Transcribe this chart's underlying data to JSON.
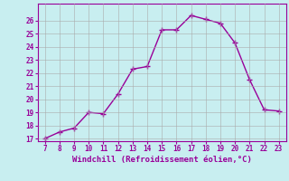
{
  "x": [
    7,
    8,
    9,
    10,
    11,
    12,
    13,
    14,
    15,
    16,
    17,
    18,
    19,
    20,
    21,
    22,
    23
  ],
  "y": [
    17.0,
    17.5,
    17.8,
    19.0,
    18.9,
    20.4,
    22.3,
    22.5,
    25.3,
    25.3,
    26.4,
    26.1,
    25.8,
    24.3,
    21.5,
    19.2,
    19.1
  ],
  "line_color": "#990099",
  "marker": "+",
  "background_color": "#c8eef0",
  "grid_color": "#aaaaaa",
  "xlabel": "Windchill (Refroidissement éolien,°C)",
  "xlabel_color": "#990099",
  "tick_color": "#990099",
  "ylim": [
    17,
    27
  ],
  "xlim": [
    7,
    23
  ],
  "yticks": [
    17,
    18,
    19,
    20,
    21,
    22,
    23,
    24,
    25,
    26
  ],
  "xticks": [
    7,
    8,
    9,
    10,
    11,
    12,
    13,
    14,
    15,
    16,
    17,
    18,
    19,
    20,
    21,
    22,
    23
  ]
}
